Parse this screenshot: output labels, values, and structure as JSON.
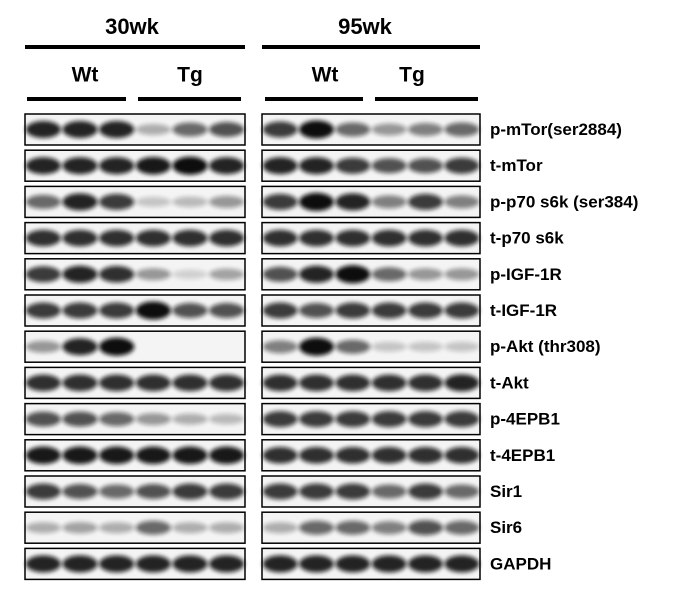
{
  "groups": [
    {
      "label": "30wk",
      "subgroups": [
        "Wt",
        "Tg"
      ]
    },
    {
      "label": "95wk",
      "subgroups": [
        "Wt",
        "Tg"
      ]
    }
  ],
  "rows": [
    "p-mTor(ser2884)",
    "t-mTor",
    "p-p70 s6k (ser384)",
    "t-p70 s6k",
    "p-IGF-1R",
    "t-IGF-1R",
    "p-Akt (thr308)",
    "t-Akt",
    "p-4EPB1",
    "t-4EPB1",
    "Sir1",
    "Sir6",
    "GAPDH"
  ]
}
